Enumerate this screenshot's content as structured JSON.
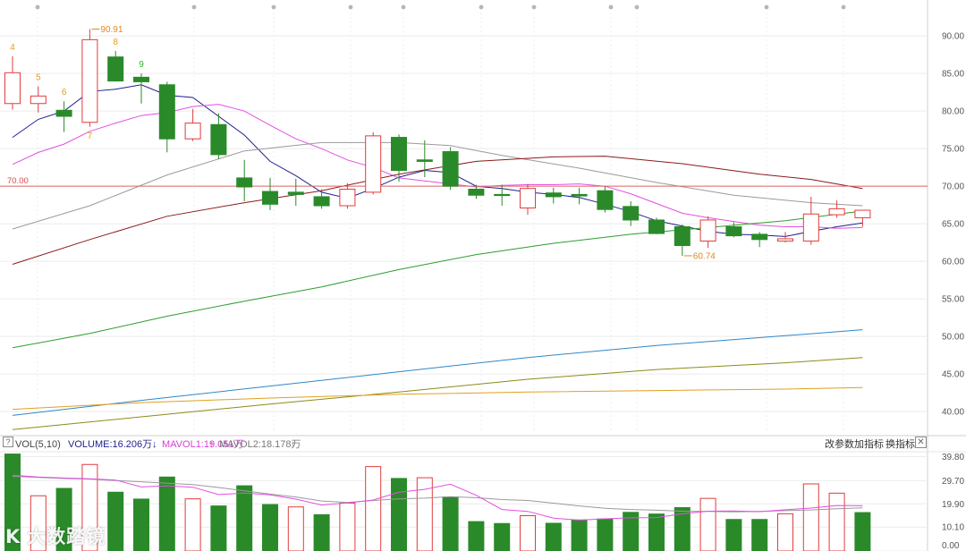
{
  "indicator_bar": {
    "help_icon": "?",
    "vol_label": "VOL(5,10)",
    "volume_label": "VOLUME:16.206万",
    "volume_arrow": "↓",
    "mavol1_label": "MAVOL1:19.051万",
    "mavol1_arrow": "↑",
    "mavol2_label": "MAVOL2:18.178万",
    "mavol2_arrow": "↑",
    "tools": [
      "改参数",
      "加指标",
      "换指标"
    ],
    "close_icon": "✕"
  },
  "watermark": {
    "logo": "K",
    "text": "大数踏镜"
  },
  "colors": {
    "up": "#e03c3c",
    "down": "#2a8a2a",
    "ma5": "#1f1f8f",
    "ma10": "#e24fe2",
    "ma20": "#9a9a9a",
    "ma30": "#8b1a1a",
    "ma60": "#2e9d2e",
    "ma120": "#2f87c8",
    "ma250": "#8b8b1a",
    "ma500": "#e0a020",
    "price_line": "#e06666",
    "mavol1": "#e24fe2",
    "mavol2": "#9a9a9a"
  },
  "chart_data": [
    {
      "type": "candlestick",
      "y_ticks": [
        "90.00",
        "85.00",
        "80.00",
        "75.00",
        "70.00",
        "65.00",
        "60.00",
        "55.00",
        "50.00",
        "45.00",
        "40.00"
      ],
      "ylim": [
        37.4,
        92.4
      ],
      "grid": true,
      "candles": [
        {
          "o": 81.0,
          "h": 87.3,
          "l": 80.2,
          "c": 85.1
        },
        {
          "o": 81.0,
          "h": 83.3,
          "l": 79.8,
          "c": 82.0
        },
        {
          "o": 80.1,
          "h": 81.3,
          "l": 77.2,
          "c": 79.3
        },
        {
          "o": 78.5,
          "h": 90.91,
          "l": 77.9,
          "c": 89.5
        },
        {
          "o": 87.2,
          "h": 88.0,
          "l": 84.5,
          "c": 84.0
        },
        {
          "o": 84.5,
          "h": 85.0,
          "l": 81.0,
          "c": 83.9
        },
        {
          "o": 83.5,
          "h": 83.9,
          "l": 74.5,
          "c": 76.3
        },
        {
          "o": 76.3,
          "h": 80.3,
          "l": 76.0,
          "c": 78.4
        },
        {
          "o": 78.2,
          "h": 79.7,
          "l": 73.6,
          "c": 74.2
        },
        {
          "o": 71.1,
          "h": 73.5,
          "l": 68.0,
          "c": 69.9
        },
        {
          "o": 69.3,
          "h": 71.1,
          "l": 66.8,
          "c": 67.6
        },
        {
          "o": 69.2,
          "h": 71.0,
          "l": 67.4,
          "c": 68.9
        },
        {
          "o": 68.6,
          "h": 69.6,
          "l": 67.0,
          "c": 67.4
        },
        {
          "o": 67.4,
          "h": 70.4,
          "l": 67.0,
          "c": 69.6
        },
        {
          "o": 69.2,
          "h": 77.2,
          "l": 68.9,
          "c": 76.7
        },
        {
          "o": 76.5,
          "h": 76.9,
          "l": 70.6,
          "c": 72.1
        },
        {
          "o": 73.5,
          "h": 76.1,
          "l": 71.2,
          "c": 73.3
        },
        {
          "o": 74.6,
          "h": 75.2,
          "l": 69.5,
          "c": 70.0
        },
        {
          "o": 69.6,
          "h": 70.2,
          "l": 68.3,
          "c": 68.8
        },
        {
          "o": 68.9,
          "h": 70.2,
          "l": 67.4,
          "c": 68.8
        },
        {
          "o": 67.1,
          "h": 70.3,
          "l": 66.2,
          "c": 69.7
        },
        {
          "o": 69.1,
          "h": 69.8,
          "l": 67.7,
          "c": 68.6
        },
        {
          "o": 68.9,
          "h": 69.8,
          "l": 67.6,
          "c": 68.7
        },
        {
          "o": 69.4,
          "h": 70.0,
          "l": 66.5,
          "c": 66.9
        },
        {
          "o": 67.3,
          "h": 68.0,
          "l": 64.7,
          "c": 65.5
        },
        {
          "o": 65.5,
          "h": 65.8,
          "l": 63.6,
          "c": 63.7
        },
        {
          "o": 64.6,
          "h": 64.9,
          "l": 60.74,
          "c": 62.1
        },
        {
          "o": 62.7,
          "h": 66.0,
          "l": 61.8,
          "c": 65.5
        },
        {
          "o": 64.6,
          "h": 65.2,
          "l": 63.2,
          "c": 63.4
        },
        {
          "o": 63.6,
          "h": 63.9,
          "l": 61.9,
          "c": 62.9
        },
        {
          "o": 62.7,
          "h": 63.9,
          "l": 62.5,
          "c": 63.0
        },
        {
          "o": 62.7,
          "h": 68.6,
          "l": 62.2,
          "c": 66.3
        },
        {
          "o": 66.2,
          "h": 68.1,
          "l": 65.8,
          "c": 67.0
        },
        {
          "o": 65.8,
          "h": 66.8,
          "l": 64.6,
          "c": 66.8
        }
      ],
      "moving_averages": [
        {
          "key": "ma5",
          "points": [
            [
              0,
              76.5
            ],
            [
              1,
              78.9
            ],
            [
              2,
              80.0
            ],
            [
              3,
              82.6
            ],
            [
              4,
              82.9
            ],
            [
              5,
              83.5
            ],
            [
              6,
              82.1
            ],
            [
              7,
              81.8
            ],
            [
              8,
              79.3
            ],
            [
              9,
              76.8
            ],
            [
              10,
              73.3
            ],
            [
              11,
              71.4
            ],
            [
              12,
              69.2
            ],
            [
              13,
              68.4
            ],
            [
              14,
              69.7
            ],
            [
              15,
              71.2
            ],
            [
              16,
              72.1
            ],
            [
              17,
              71.8
            ],
            [
              18,
              70.0
            ],
            [
              19,
              69.7
            ],
            [
              20,
              69.2
            ],
            [
              21,
              68.9
            ],
            [
              22,
              68.5
            ],
            [
              23,
              67.6
            ],
            [
              24,
              66.6
            ],
            [
              25,
              65.4
            ],
            [
              26,
              64.7
            ],
            [
              27,
              64.0
            ],
            [
              28,
              63.6
            ],
            [
              29,
              63.5
            ],
            [
              30,
              63.3
            ],
            [
              31,
              64.0
            ],
            [
              32,
              64.6
            ],
            [
              33,
              65.1
            ]
          ]
        },
        {
          "key": "ma10",
          "points": [
            [
              0,
              72.9
            ],
            [
              1,
              74.5
            ],
            [
              2,
              75.6
            ],
            [
              3,
              77.3
            ],
            [
              4,
              78.4
            ],
            [
              5,
              79.4
            ],
            [
              6,
              79.8
            ],
            [
              7,
              80.6
            ],
            [
              8,
              80.9
            ],
            [
              9,
              80.0
            ],
            [
              10,
              78.1
            ],
            [
              11,
              76.3
            ],
            [
              12,
              75.0
            ],
            [
              13,
              73.5
            ],
            [
              14,
              72.5
            ],
            [
              15,
              71.1
            ],
            [
              16,
              70.7
            ],
            [
              17,
              70.3
            ],
            [
              18,
              69.9
            ],
            [
              19,
              70.1
            ],
            [
              20,
              70.2
            ],
            [
              21,
              70.2
            ],
            [
              22,
              70.3
            ],
            [
              23,
              70.0
            ],
            [
              24,
              69.0
            ],
            [
              25,
              67.7
            ],
            [
              26,
              66.4
            ],
            [
              27,
              65.8
            ],
            [
              28,
              65.3
            ],
            [
              29,
              64.8
            ],
            [
              30,
              64.6
            ],
            [
              31,
              64.6
            ],
            [
              32,
              64.4
            ],
            [
              33,
              64.5
            ]
          ]
        },
        {
          "key": "ma20",
          "points": [
            [
              0,
              64.3
            ],
            [
              3,
              67.4
            ],
            [
              6,
              71.5
            ],
            [
              9,
              74.7
            ],
            [
              12,
              75.8
            ],
            [
              15,
              75.8
            ],
            [
              17,
              75.4
            ],
            [
              19,
              74.1
            ],
            [
              22,
              72.4
            ],
            [
              25,
              70.5
            ],
            [
              28,
              68.8
            ],
            [
              31,
              67.8
            ],
            [
              33,
              67.4
            ]
          ]
        },
        {
          "key": "ma30",
          "points": [
            [
              0,
              59.6
            ],
            [
              3,
              62.9
            ],
            [
              6,
              66.0
            ],
            [
              9,
              67.8
            ],
            [
              12,
              69.4
            ],
            [
              15,
              71.6
            ],
            [
              18,
              73.3
            ],
            [
              21,
              73.9
            ],
            [
              23,
              74.0
            ],
            [
              26,
              73.0
            ],
            [
              29,
              71.6
            ],
            [
              31,
              70.9
            ],
            [
              33,
              69.7
            ]
          ]
        },
        {
          "key": "ma60",
          "points": [
            [
              0,
              48.5
            ],
            [
              3,
              50.4
            ],
            [
              6,
              52.7
            ],
            [
              9,
              54.7
            ],
            [
              12,
              56.6
            ],
            [
              15,
              58.9
            ],
            [
              18,
              60.9
            ],
            [
              21,
              62.4
            ],
            [
              24,
              63.6
            ],
            [
              27,
              64.5
            ],
            [
              30,
              65.4
            ],
            [
              33,
              66.7
            ]
          ]
        },
        {
          "key": "ma120",
          "points": [
            [
              0,
              39.5
            ],
            [
              5,
              41.5
            ],
            [
              10,
              43.4
            ],
            [
              15,
              45.3
            ],
            [
              20,
              47.2
            ],
            [
              25,
              48.8
            ],
            [
              30,
              50.1
            ],
            [
              33,
              50.9
            ]
          ]
        },
        {
          "key": "ma250",
          "points": [
            [
              0,
              37.6
            ],
            [
              5,
              39.3
            ],
            [
              10,
              41.0
            ],
            [
              15,
              42.6
            ],
            [
              20,
              44.3
            ],
            [
              25,
              45.6
            ],
            [
              30,
              46.5
            ],
            [
              33,
              47.2
            ]
          ]
        },
        {
          "key": "ma500",
          "points": [
            [
              0,
              40.3
            ],
            [
              5,
              41.2
            ],
            [
              10,
              41.8
            ],
            [
              15,
              42.3
            ],
            [
              20,
              42.6
            ],
            [
              25,
              42.8
            ],
            [
              30,
              43.0
            ],
            [
              33,
              43.2
            ]
          ]
        }
      ],
      "horizontal_line": {
        "value": 70.0,
        "label": "70.00"
      },
      "annotations": [
        {
          "candle": 0,
          "text": "4",
          "color": "#e0a020",
          "pos": "above"
        },
        {
          "candle": 1,
          "text": "5",
          "color": "#e0a020",
          "pos": "above"
        },
        {
          "candle": 2,
          "text": "6",
          "color": "#e0a020",
          "pos": "above"
        },
        {
          "candle": 3,
          "text": "7",
          "color": "#e0a020",
          "pos": "below"
        },
        {
          "candle": 4,
          "text": "8",
          "color": "#e0a020",
          "pos": "above"
        },
        {
          "candle": 5,
          "text": "9",
          "color": "#2db52d",
          "pos": "above"
        }
      ],
      "extreme_labels": [
        {
          "candle": 3,
          "value": 90.91,
          "text": "90.91",
          "pos": "high"
        },
        {
          "candle": 26,
          "value": 60.74,
          "text": "60.74",
          "pos": "low"
        }
      ]
    },
    {
      "type": "bar",
      "name": "VOL(5,10)",
      "y_ticks": [
        "39.80",
        "29.70",
        "19.90",
        "10.10",
        "0.00"
      ],
      "ylim": [
        0,
        41.5
      ],
      "values": [
        40.9,
        23.3,
        26.4,
        36.5,
        24.8,
        21.9,
        31.2,
        22.0,
        19.0,
        27.5,
        19.6,
        18.6,
        15.3,
        20.2,
        35.6,
        30.6,
        30.9,
        22.8,
        12.4,
        11.6,
        14.9,
        11.7,
        13.1,
        13.5,
        16.3,
        15.6,
        18.3,
        22.2,
        13.3,
        13.3,
        15.7,
        28.3,
        24.4,
        16.2
      ],
      "up": [
        false,
        true,
        false,
        true,
        false,
        false,
        false,
        true,
        false,
        false,
        false,
        true,
        false,
        true,
        true,
        false,
        true,
        false,
        false,
        false,
        true,
        false,
        false,
        false,
        false,
        false,
        false,
        true,
        false,
        false,
        true,
        true,
        true,
        false
      ],
      "mavol1": [
        32.0,
        31.2,
        30.8,
        30.5,
        29.9,
        27.0,
        27.5,
        26.9,
        23.8,
        24.4,
        23.7,
        21.9,
        19.4,
        20.3,
        21.5,
        24.8,
        26.0,
        28.2,
        23.5,
        17.5,
        16.7,
        13.9,
        13.0,
        13.6,
        14.0,
        14.1,
        15.7,
        16.8,
        16.9,
        16.6,
        17.4,
        18.1,
        19.2,
        19.1
      ],
      "mavol2": [
        31.5,
        31.0,
        30.6,
        30.3,
        29.7,
        29.2,
        28.6,
        28.0,
        26.8,
        25.4,
        24.0,
        22.8,
        21.1,
        20.5,
        21.3,
        22.0,
        22.3,
        22.9,
        22.5,
        21.7,
        21.3,
        20.2,
        19.0,
        18.0,
        17.5,
        17.2,
        16.8,
        16.7,
        16.5,
        16.7,
        17.0,
        17.3,
        17.8,
        18.2
      ]
    }
  ]
}
